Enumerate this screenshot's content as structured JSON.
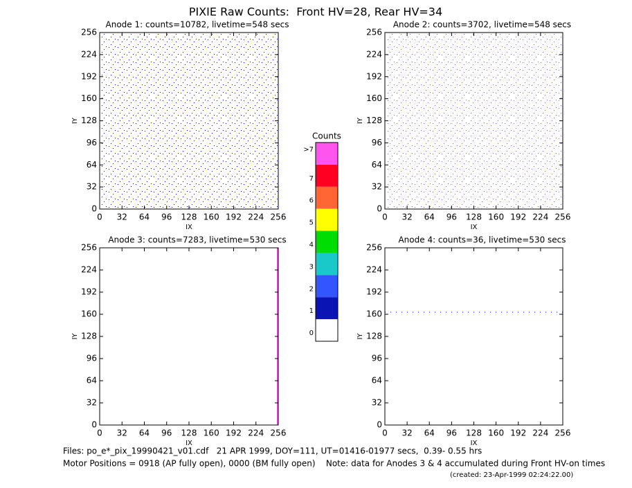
{
  "title": "PIXIE Raw Counts:  Front HV=28, Rear HV=34",
  "panels": [
    {
      "title": "Anode 1: counts=10782, livetime=548 secs",
      "xlabel": "IX",
      "ylabel": "IY",
      "xlim": [
        0,
        256
      ],
      "ylim": [
        0,
        256
      ],
      "xticks": [
        0,
        32,
        64,
        96,
        128,
        160,
        192,
        224,
        256
      ],
      "yticks": [
        0,
        32,
        64,
        96,
        128,
        160,
        192,
        224,
        256
      ]
    },
    {
      "title": "Anode 2: counts=3702, livetime=548 secs",
      "xlabel": "IX",
      "ylabel": "IY",
      "xlim": [
        0,
        256
      ],
      "ylim": [
        0,
        256
      ],
      "xticks": [
        0,
        32,
        64,
        96,
        128,
        160,
        192,
        224,
        256
      ],
      "yticks": [
        0,
        32,
        64,
        96,
        128,
        160,
        192,
        224,
        256
      ]
    },
    {
      "title": "Anode 3: counts=7283, livetime=530 secs",
      "xlabel": "IX",
      "ylabel": "IY",
      "xlim": [
        0,
        256
      ],
      "ylim": [
        0,
        256
      ],
      "xticks": [
        0,
        32,
        64,
        96,
        128,
        160,
        192,
        224,
        256
      ],
      "yticks": [
        0,
        32,
        64,
        96,
        128,
        160,
        192,
        224,
        256
      ],
      "lines": [
        {
          "x": 255,
          "color": "#ff55ee"
        }
      ]
    },
    {
      "title": "Anode 4: counts=36, livetime=530 secs",
      "xlabel": "IX",
      "ylabel": "IY",
      "xlim": [
        0,
        256
      ],
      "ylim": [
        0,
        256
      ],
      "xticks": [
        0,
        32,
        64,
        96,
        128,
        160,
        192,
        224,
        256
      ],
      "yticks": [
        0,
        32,
        64,
        96,
        128,
        160,
        192,
        224,
        256
      ],
      "lines": [
        {
          "y": 163,
          "color": "#3355ff"
        }
      ]
    }
  ],
  "colorbar": {
    "title": "Counts",
    "levels": [
      {
        "label": "0",
        "color": "#ffffff"
      },
      {
        "label": "1",
        "color": "#0a14b4"
      },
      {
        "label": "2",
        "color": "#3355ff"
      },
      {
        "label": "3",
        "color": "#19c8c8"
      },
      {
        "label": "4",
        "color": "#00dd00"
      },
      {
        "label": "5",
        "color": "#ffff00"
      },
      {
        "label": "6",
        "color": "#ff6633"
      },
      {
        "label": "7",
        "color": "#ff0022"
      },
      {
        "label": ">7",
        "color": "#ff55ee"
      }
    ]
  },
  "footer": [
    "Files: po_e*_pix_19990421_v01.cdf   21 APR 1999, DOY=111, UT=01416-01977 secs,  0.39- 0.55 hrs",
    "Motor Positions = 0918 (AP fully open), 0000 (BM fully open)    Note: data for Anodes 3 & 4 accumulated during Front HV-on times",
    "(created: 23-Apr-1999 02:24:22.00)"
  ]
}
